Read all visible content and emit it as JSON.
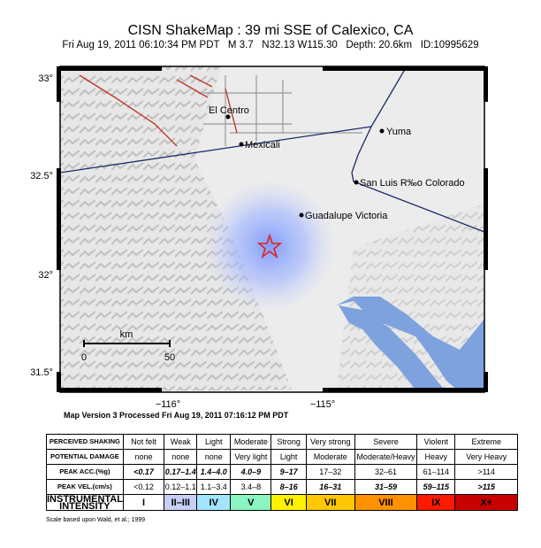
{
  "header": {
    "title": "CISN ShakeMap : 39 mi SSE of Calexico, CA",
    "subtitle": "Fri Aug 19, 2011 06:10:34 PM PDT   M 3.7   N32.13 W115.30   Depth: 20.6km   ID:10995629"
  },
  "map": {
    "lat_labels": [
      "33°",
      "32.5°",
      "32°",
      "31.5°"
    ],
    "lon_labels": [
      "−116°",
      "−115°"
    ],
    "places": [
      "El Centro",
      "Mexicali",
      "Yuma",
      "San Luis R‰o Colorado",
      "Guadalupe Victoria"
    ],
    "scale": {
      "unit": "km",
      "start": "0",
      "end": "50"
    },
    "version": "Map Version 3 Processed Fri Aug 19, 2011 07:16:12 PM PDT"
  },
  "table": {
    "rows": [
      {
        "label": "PERCEIVED SHAKING",
        "cells": [
          "Not felt",
          "Weak",
          "Light",
          "Moderate",
          "Strong",
          "Very strong",
          "Severe",
          "Violent",
          "Extreme"
        ]
      },
      {
        "label": "POTENTIAL DAMAGE",
        "cells": [
          "none",
          "none",
          "none",
          "Very light",
          "Light",
          "Moderate",
          "Moderate/Heavy",
          "Heavy",
          "Very Heavy"
        ]
      },
      {
        "label": "PEAK ACC.(%g)",
        "cells": [
          "<0.17",
          "0.17–1.4",
          "1.4–4.0",
          "4.0–9",
          "9–17",
          "17–32",
          "32–61",
          "61–114",
          ">114"
        ]
      },
      {
        "label": "PEAK VEL.(cm/s)",
        "cells": [
          "<0.12",
          "0.12–1.1",
          "1.1–3.4",
          "3.4–8",
          "8–16",
          "16–31",
          "31–59",
          "59–115",
          ">115"
        ]
      },
      {
        "label": "INSTRUMENTAL INTENSITY",
        "cells": [
          "I",
          "II–III",
          "IV",
          "V",
          "VI",
          "VII",
          "VIII",
          "IX",
          "X+"
        ]
      }
    ]
  },
  "footnote": "Scale based upon Wald, et al.; 1999"
}
